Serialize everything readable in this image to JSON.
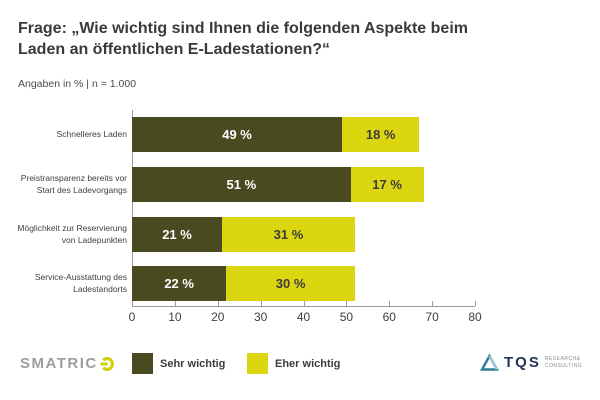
{
  "header": {
    "title": "Frage: „Wie wichtig sind Ihnen die folgenden Aspekte beim Laden an öffentlichen E-Ladestationen?“",
    "subtitle": "Angaben in % | n = 1.000"
  },
  "chart_data": {
    "type": "bar",
    "variant": "horizontal-stacked",
    "categories": [
      "Schnelleres Laden",
      "Preistransparenz bereits vor Start des Ladevorgangs",
      "Möglichkeit zur Reservierung von Ladepunkten",
      "Service-Ausstattung des Ladestandorts"
    ],
    "series": [
      {
        "name": "Sehr wichtig",
        "color": "#4a4a21",
        "label_color": "#ffffff",
        "values": [
          49,
          51,
          21,
          22
        ]
      },
      {
        "name": "Eher wichtig",
        "color": "#dbd610",
        "label_color": "#3c3c3c",
        "values": [
          18,
          17,
          31,
          30
        ]
      }
    ],
    "value_suffix": " %",
    "xlim": [
      0,
      80
    ],
    "x_ticks": [
      0,
      10,
      20,
      30,
      40,
      50,
      60,
      70,
      80
    ],
    "grid": false,
    "legend_position": "bottom"
  },
  "footer": {
    "smatrics_text": "SMATRIC",
    "tqs_name": "TQS",
    "tqs_tagline_line1": "RESEARCH&",
    "tqs_tagline_line2": "CONSULTING"
  },
  "colors": {
    "axis": "#9b9b9b",
    "text_dark": "#3a3a3a",
    "smatrics_gray": "#9d9d9d",
    "smatrics_accent": "#d2cf11",
    "tqs_navy": "#24355a",
    "tqs_teal": "#2e7d96"
  }
}
